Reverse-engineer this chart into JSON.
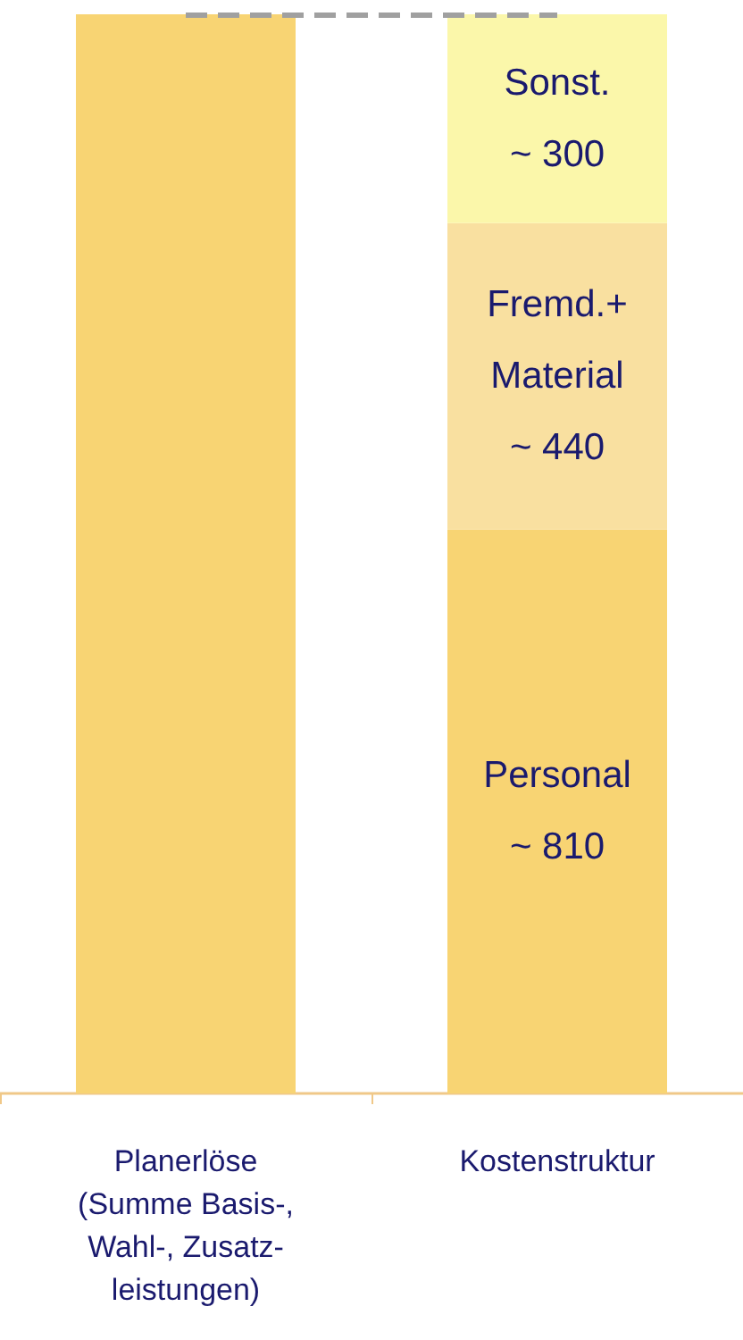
{
  "chart_data": {
    "type": "bar",
    "stacked": true,
    "categories": [
      "Planerlöse\n(Summe Basis-,\nWahl-, Zusatz-\nleistungen)",
      "Kostenstruktur"
    ],
    "series": [
      {
        "color": "#f8d473",
        "values": [
          1550,
          810
        ],
        "value_labels": [
          null,
          "Personal\n~ 810"
        ]
      },
      {
        "color": "#f9e0a0",
        "values": [
          null,
          440
        ],
        "value_labels": [
          null,
          "Fremd.+\nMaterial\n~ 440"
        ]
      },
      {
        "color": "#fbf7aa",
        "values": [
          null,
          300
        ],
        "value_labels": [
          null,
          "Sonst.\n~ 300"
        ]
      }
    ],
    "ref_lines": [
      {
        "axis": "y",
        "value": 1550,
        "color": "#a0a0a0",
        "line_style": "dashed"
      }
    ],
    "grid": false
  }
}
